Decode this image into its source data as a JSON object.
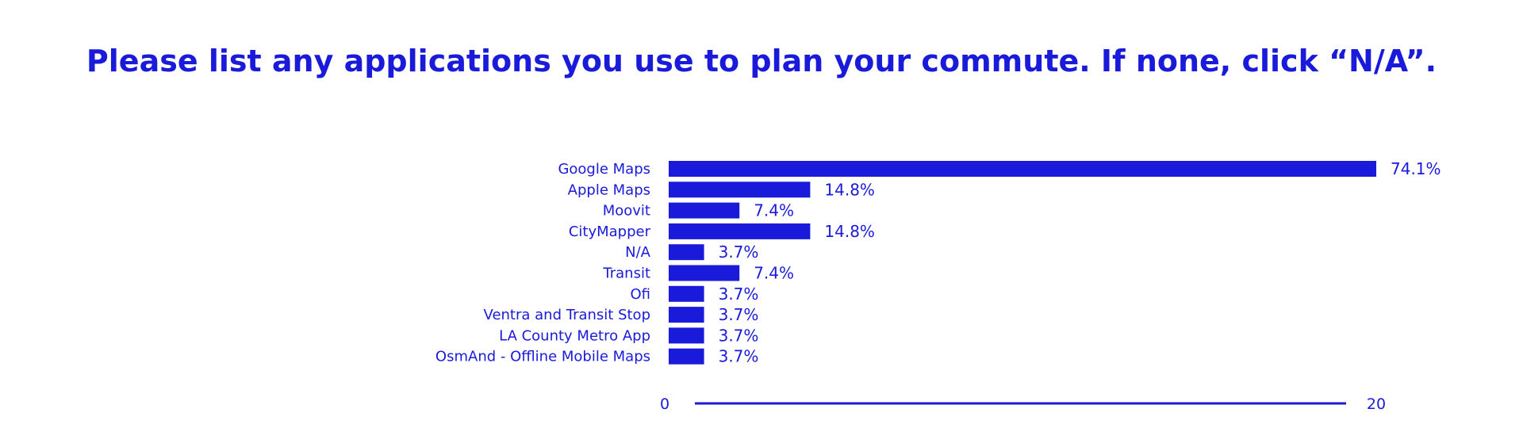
{
  "title": "Please list any applications you use to plan your commute. If none, click “N/A”.",
  "colors": {
    "bar": "#1a1adb",
    "text": "#1a1adb",
    "background": "#ffffff"
  },
  "chart_data": {
    "type": "bar",
    "orientation": "horizontal",
    "title": "Please list any applications you use to plan your commute. If none, click “N/A”.",
    "categories": [
      "Google Maps",
      "Apple Maps",
      "Moovit",
      "CityMapper",
      "N/A",
      "Transit",
      "Ofi",
      "Ventra and Transit Stop",
      "LA County Metro App",
      "OsmAnd - Offline Mobile Maps"
    ],
    "values": [
      20,
      4,
      2,
      4,
      1,
      2,
      1,
      1,
      1,
      1
    ],
    "value_labels": [
      "74.1%",
      "14.8%",
      "7.4%",
      "14.8%",
      "3.7%",
      "7.4%",
      "3.7%",
      "3.7%",
      "3.7%",
      "3.7%"
    ],
    "xlim": [
      0,
      20
    ],
    "x_tick_labels": [
      "0",
      "20"
    ],
    "grid": false,
    "legend": "none"
  }
}
